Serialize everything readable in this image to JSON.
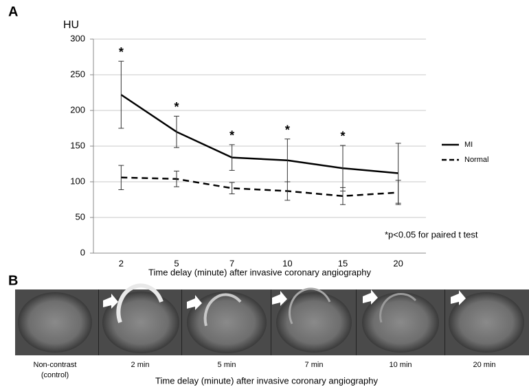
{
  "chart_data": {
    "type": "line",
    "panel_label": "A",
    "y_label": "HU",
    "x_label": "Time delay (minute) after invasive coronary angiography",
    "categories": [
      "2",
      "5",
      "7",
      "10",
      "15",
      "20"
    ],
    "series": [
      {
        "name": "MI",
        "color": "#000000",
        "line_style": "solid",
        "values": [
          222,
          170,
          134,
          130,
          119,
          112
        ],
        "errors": [
          47,
          22,
          18,
          30,
          32,
          42
        ]
      },
      {
        "name": "Normal",
        "color": "#000000",
        "line_style": "dashed",
        "values": [
          106,
          104,
          91,
          87,
          80,
          85
        ],
        "errors": [
          17,
          11,
          8,
          13,
          12,
          17
        ]
      }
    ],
    "significance_markers": [
      "*",
      "*",
      "*",
      "*",
      "*",
      null
    ],
    "note": "*p<0.05 for paired t test",
    "ylim": [
      0,
      300
    ],
    "yticks": [
      0,
      50,
      100,
      150,
      200,
      250,
      300
    ],
    "grid": true,
    "legend": "right"
  },
  "panel_b": {
    "label": "B",
    "captions": [
      [
        "Non-contrast",
        "(control)"
      ],
      [
        "2 min"
      ],
      [
        "5 min"
      ],
      [
        "7 min"
      ],
      [
        "10 min"
      ],
      [
        "20 min"
      ]
    ],
    "x_label": "Time delay (minute) after invasive coronary angiography"
  }
}
